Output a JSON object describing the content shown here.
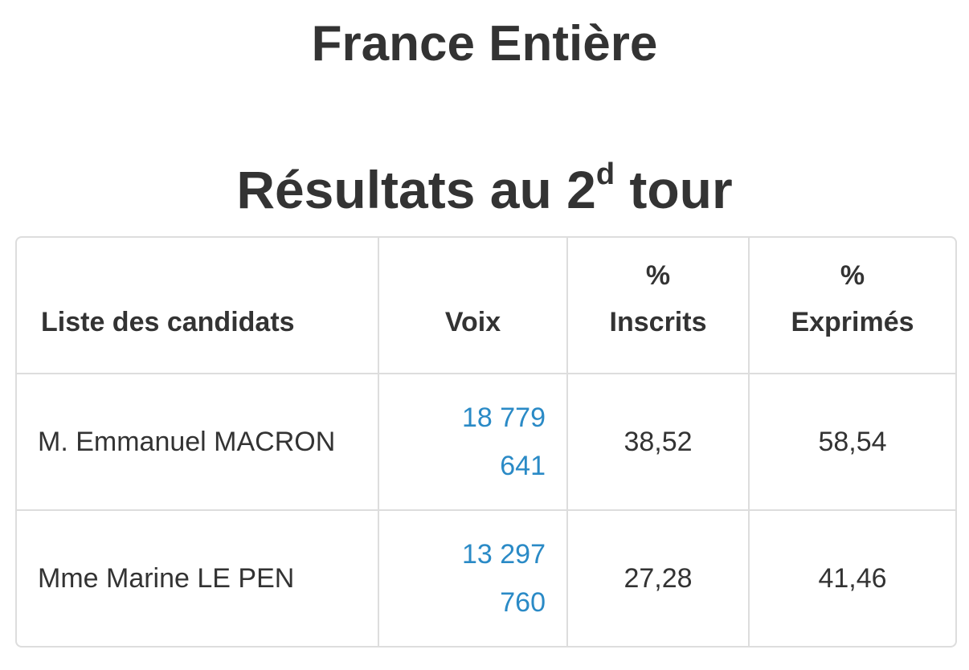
{
  "header": {
    "title": "France Entière",
    "subtitle": {
      "text": "Résultats au 2",
      "sup": "d",
      "after": " tour"
    }
  },
  "table": {
    "columns": [
      "Liste des candidats",
      "Voix",
      "% Inscrits",
      "% Exprimés"
    ],
    "rows": [
      [
        "M. Emmanuel MACRON",
        "18 779 641",
        "38,52",
        "58,54"
      ],
      [
        "Mme Marine LE PEN",
        "13 297 760",
        "27,28",
        "41,46"
      ]
    ]
  }
}
